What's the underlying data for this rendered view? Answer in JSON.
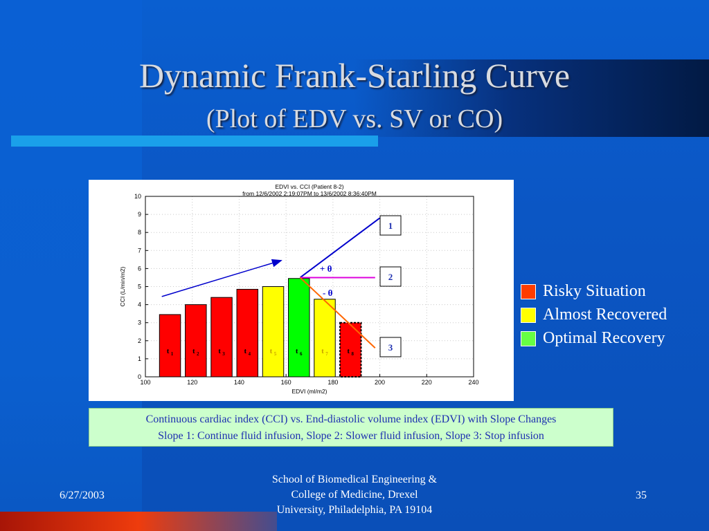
{
  "slide": {
    "title": "Dynamic Frank-Starling Curve",
    "subtitle": "(Plot of EDV vs. SV or CO)",
    "caption_line1": "Continuous cardiac index (CCI) vs. End-diastolic volume index (EDVI) with Slope Changes",
    "caption_line2": "Slope 1: Continue fluid infusion, Slope 2: Slower fluid infusion, Slope 3: Stop infusion",
    "footer_date": "6/27/2003",
    "footer_school_line1": "School of Biomedical Engineering &",
    "footer_school_line2": "College of Medicine, Drexel",
    "footer_school_line3": "University, Philadelphia, PA 19104",
    "page_number": "35"
  },
  "legend": [
    {
      "label": "Risky Situation",
      "color": "#ff3c00"
    },
    {
      "label": "Almost Recovered",
      "color": "#ffff00"
    },
    {
      "label": "Optimal Recovery",
      "color": "#66ff44"
    }
  ],
  "chart_data": {
    "type": "bar",
    "title_line1": "EDVI vs. CCI (Patient 8-2)",
    "title_line2": "from 12/6/2002 2:19:07PM to 13/6/2002 8:36:40PM",
    "xlabel": "EDVI (ml/m2)",
    "ylabel": "CCI (L/min/m2)",
    "xlim": [
      100,
      240
    ],
    "ylim": [
      0,
      10
    ],
    "xticks": [
      100,
      120,
      140,
      160,
      180,
      200,
      220,
      240
    ],
    "yticks": [
      0,
      1,
      2,
      3,
      4,
      5,
      6,
      7,
      8,
      9,
      10
    ],
    "grid": true,
    "bars": [
      {
        "label": "t",
        "sub": "1",
        "x0": 106,
        "x1": 115,
        "value": 3.45,
        "color": "#ff0000",
        "dashed": false
      },
      {
        "label": "t",
        "sub": "2",
        "x0": 117,
        "x1": 126,
        "value": 4.0,
        "color": "#ff0000",
        "dashed": false
      },
      {
        "label": "t",
        "sub": "3",
        "x0": 128,
        "x1": 137,
        "value": 4.4,
        "color": "#ff0000",
        "dashed": false
      },
      {
        "label": "t",
        "sub": "4",
        "x0": 139,
        "x1": 148,
        "value": 4.85,
        "color": "#ff0000",
        "dashed": false
      },
      {
        "label": "t",
        "sub": "5",
        "x0": 150,
        "x1": 159,
        "value": 5.0,
        "color": "#ffff00",
        "dashed": false
      },
      {
        "label": "t",
        "sub": "6",
        "x0": 161,
        "x1": 170,
        "value": 5.45,
        "color": "#00ff00",
        "dashed": false
      },
      {
        "label": "t",
        "sub": "7",
        "x0": 172,
        "x1": 181,
        "value": 4.3,
        "color": "#ffff00",
        "dashed": false
      },
      {
        "label": "t",
        "sub": "8",
        "x0": 183,
        "x1": 192,
        "value": 3.0,
        "color": "#ff0000",
        "dashed": true
      }
    ],
    "trend_arrow": {
      "x1": 107,
      "y1": 4.45,
      "x2": 158,
      "y2": 6.45,
      "color": "#0000cc"
    },
    "slopes": [
      {
        "name": "1",
        "x1": 166,
        "y1": 5.5,
        "x2": 200,
        "y2": 8.8,
        "color": "#0000cc"
      },
      {
        "name": "2",
        "x1": 166,
        "y1": 5.5,
        "x2": 198,
        "y2": 5.5,
        "color": "#dd00dd"
      },
      {
        "name": "3",
        "x1": 166,
        "y1": 5.5,
        "x2": 198,
        "y2": 1.6,
        "color": "#ff6600"
      }
    ],
    "annotations": {
      "plus_theta": "+ θ",
      "minus_theta": "- θ"
    }
  }
}
